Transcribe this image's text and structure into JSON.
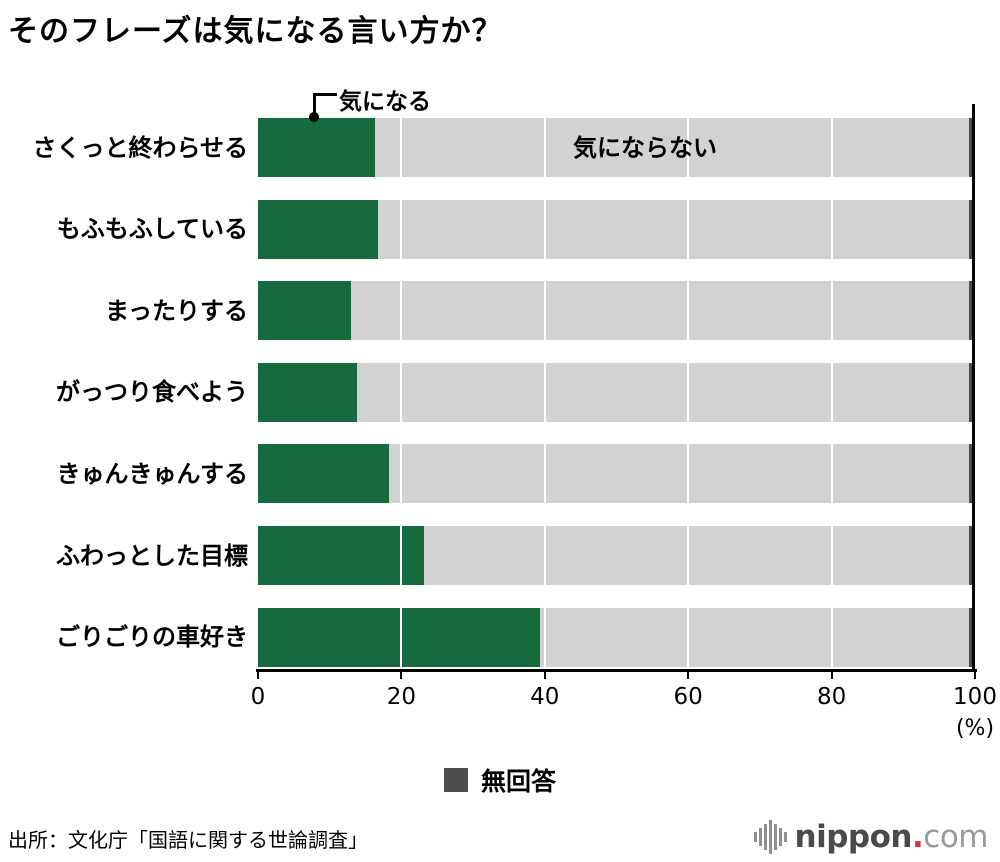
{
  "title": "そのフレーズは気になる言い方か？",
  "annotation": {
    "pointer_label": "気になる",
    "inside_bar_label": "気にならない"
  },
  "axis": {
    "unit": "(%)"
  },
  "legend": {
    "no_answer_label": "無回答"
  },
  "source": "出所：文化庁「国語に関する世論調査」",
  "logo": {
    "name": "nippon",
    "dot": ".",
    "tld": "com"
  },
  "colors": {
    "concerned_green": "#176a3e",
    "not_concerned_gray": "#d2d2d2",
    "no_answer_dark": "#4d4d4d",
    "axis_black": "#000000",
    "logo_red": "#dc2f34"
  },
  "chart_data": {
    "type": "bar",
    "orientation": "horizontal",
    "stacked": true,
    "title": "そのフレーズは気になる言い方か？",
    "categories": [
      "さくっと終わらせる",
      "もふもふしている",
      "まったりする",
      "がっつり食べよう",
      "きゅんきゅんする",
      "ふわっとした目標",
      "ごりごりの車好き"
    ],
    "series": [
      {
        "name": "気になる",
        "key": "concerned",
        "color": "#176a3e",
        "values": [
          16.3,
          16.7,
          13.0,
          13.8,
          18.3,
          23.2,
          39.3
        ]
      },
      {
        "name": "気にならない",
        "key": "not-concerned",
        "color": "#d2d2d2",
        "values": [
          82.9,
          82.5,
          86.2,
          85.4,
          80.9,
          76.0,
          59.9
        ]
      },
      {
        "name": "無回答",
        "key": "no-answer",
        "color": "#4d4d4d",
        "values": [
          0.8,
          0.8,
          0.8,
          0.8,
          0.8,
          0.8,
          0.8
        ]
      }
    ],
    "xlim": [
      0,
      100
    ],
    "xticks": [
      0,
      20,
      40,
      60,
      80,
      100
    ],
    "xlabel": "(%)",
    "grid": "white-vertical-lines-at-20-intervals",
    "legend_position": "bottom-center"
  }
}
